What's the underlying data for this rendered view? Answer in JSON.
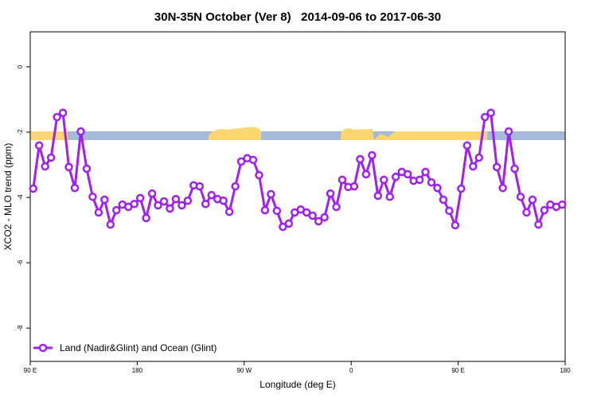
{
  "chart_data": {
    "type": "line",
    "title": "30N-35N October (Ver 8)   2014-09-06 to 2017-06-30",
    "x_label": "Longitude (deg E)",
    "y_label": "XCO2 - MLO trend (ppm)",
    "xlim": [
      90,
      540
    ],
    "ylim": [
      -9.02,
      1.07
    ],
    "xticks": [
      {
        "value": 90,
        "label": "90 E"
      },
      180,
      {
        "value": 270,
        "label": "90 W"
      },
      {
        "value": 360,
        "label": "0"
      },
      {
        "value": 450,
        "label": "90 E"
      },
      {
        "value": 540,
        "label": "180"
      }
    ],
    "yticks": [
      0,
      -2,
      -4,
      -6,
      -8
    ],
    "legend": "bottom-left",
    "grid": false,
    "x": [
      92.5,
      97.5,
      102.5,
      107.5,
      112.5,
      117.5,
      122.5,
      127.5,
      132.5,
      137.5,
      142.5,
      147.5,
      152.5,
      157.5,
      162.5,
      167.5,
      172.5,
      177.5,
      182.5,
      187.5,
      192.5,
      197.5,
      202.5,
      207.5,
      212.5,
      217.5,
      222.5,
      227.5,
      232.5,
      237.5,
      242.5,
      247.5,
      252.5,
      257.5,
      262.5,
      267.5,
      272.5,
      277.5,
      282.5,
      287.5,
      292.5,
      297.5,
      302.5,
      307.5,
      312.5,
      317.5,
      322.5,
      327.5,
      332.5,
      337.5,
      342.5,
      347.5,
      352.5,
      357.5,
      362.5,
      367.5,
      372.5,
      377.5,
      382.5,
      387.5,
      392.5,
      397.5,
      402.5,
      407.5,
      412.5,
      417.5,
      422.5,
      427.5,
      432.5,
      437.5,
      442.5,
      447.5,
      452.5,
      457.5,
      462.5,
      467.5,
      472.5,
      477.5,
      482.5,
      487.5,
      492.5,
      497.5,
      502.5,
      507.5,
      512.5,
      517.5,
      522.5,
      527.5,
      532.5,
      537.5
    ],
    "series": [
      {
        "name": "Land (Nadir&Glint) and Ocean (Glint)",
        "color": "#a020f0",
        "values": [
          -3.73,
          -2.41,
          -3.05,
          -2.78,
          -1.54,
          -1.41,
          -3.07,
          -3.71,
          -1.98,
          -3.12,
          -3.98,
          -4.46,
          -4.07,
          -4.83,
          -4.39,
          -4.22,
          -4.29,
          -4.2,
          -4.02,
          -4.63,
          -3.88,
          -4.24,
          -4.12,
          -4.34,
          -4.05,
          -4.24,
          -4.1,
          -3.63,
          -3.66,
          -4.2,
          -3.93,
          -4.05,
          -4.1,
          -4.44,
          -3.66,
          -2.9,
          -2.8,
          -2.85,
          -3.32,
          -4.39,
          -3.9,
          -4.41,
          -4.9,
          -4.8,
          -4.46,
          -4.37,
          -4.46,
          -4.56,
          -4.73,
          -4.61,
          -3.88,
          -4.29,
          -3.46,
          -3.68,
          -3.66,
          -2.83,
          -3.29,
          -2.71,
          -3.95,
          -3.46,
          -3.98,
          -3.37,
          -3.22,
          -3.29,
          -3.49,
          -3.46,
          -3.22,
          -3.54,
          -3.71,
          -4.07,
          -4.41,
          -4.85,
          -3.73,
          -2.41,
          -3.05,
          -2.78,
          -1.54,
          -1.41,
          -3.07,
          -3.71,
          -1.98,
          -3.12,
          -3.98,
          -4.46,
          -4.07,
          -4.83,
          -4.39,
          -4.22,
          -4.29,
          -4.22
        ]
      }
    ]
  }
}
